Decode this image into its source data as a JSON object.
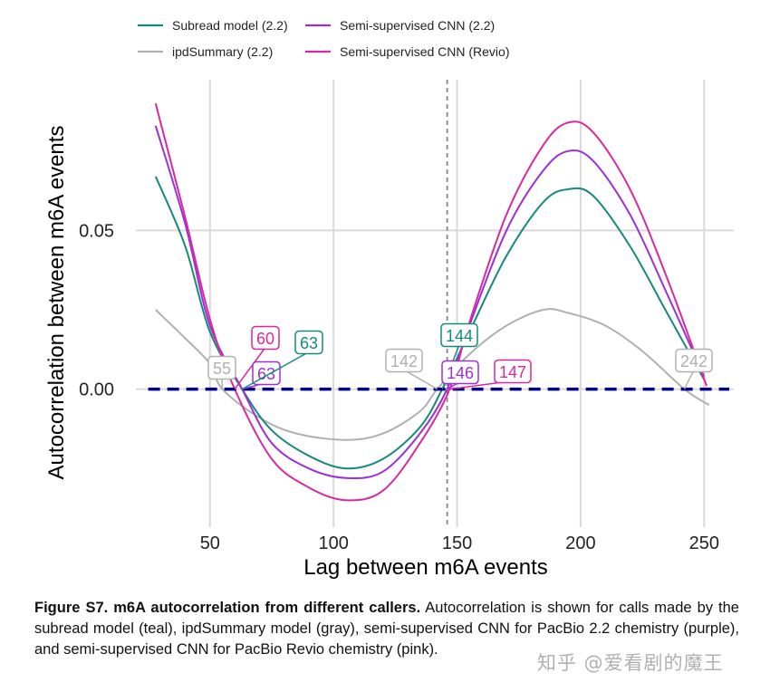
{
  "chart_data": {
    "type": "line",
    "xlabel": "Lag between m6A events",
    "ylabel": "Autocorrelation between m6A events",
    "xlim": [
      20,
      262
    ],
    "ylim": [
      -0.0435,
      0.0975
    ],
    "x_ticks": [
      50,
      100,
      150,
      200,
      250
    ],
    "x_tick_labels": [
      "50",
      "100",
      "150",
      "200",
      "250"
    ],
    "y_ticks": [
      0.0,
      0.05
    ],
    "y_tick_labels": [
      "0.00",
      "0.05"
    ],
    "grid": "major",
    "legend_position": "top",
    "reference_line": {
      "y": 0.0,
      "style": "dashed",
      "color": "#000080"
    },
    "vertical_marker": {
      "x": 146,
      "style": "dashed",
      "color": "#888888"
    },
    "series": [
      {
        "name": "Subread model (2.2)",
        "color": "#16897d",
        "points": [
          [
            28,
            0.067
          ],
          [
            40,
            0.045
          ],
          [
            50,
            0.018
          ],
          [
            63,
            0.0
          ],
          [
            75,
            -0.013
          ],
          [
            90,
            -0.021
          ],
          [
            105,
            -0.025
          ],
          [
            120,
            -0.022
          ],
          [
            135,
            -0.012
          ],
          [
            144,
            0.0
          ],
          [
            155,
            0.018
          ],
          [
            170,
            0.042
          ],
          [
            185,
            0.059
          ],
          [
            195,
            0.063
          ],
          [
            205,
            0.061
          ],
          [
            220,
            0.045
          ],
          [
            235,
            0.024
          ],
          [
            250,
            0.003
          ]
        ]
      },
      {
        "name": "ipdSummary (2.2)",
        "color": "#b0b0b0",
        "points": [
          [
            28,
            0.025
          ],
          [
            40,
            0.016
          ],
          [
            50,
            0.008
          ],
          [
            55,
            0.0
          ],
          [
            70,
            -0.009
          ],
          [
            85,
            -0.014
          ],
          [
            105,
            -0.016
          ],
          [
            120,
            -0.014
          ],
          [
            135,
            -0.007
          ],
          [
            142,
            0.0
          ],
          [
            155,
            0.011
          ],
          [
            170,
            0.02
          ],
          [
            185,
            0.025
          ],
          [
            195,
            0.024
          ],
          [
            210,
            0.02
          ],
          [
            225,
            0.012
          ],
          [
            242,
            0.0
          ],
          [
            252,
            -0.005
          ]
        ]
      },
      {
        "name": "Semi-supervised CNN (2.2)",
        "color": "#9b30d9",
        "points": [
          [
            28,
            0.083
          ],
          [
            40,
            0.052
          ],
          [
            50,
            0.02
          ],
          [
            63,
            0.0
          ],
          [
            75,
            -0.017
          ],
          [
            90,
            -0.025
          ],
          [
            105,
            -0.028
          ],
          [
            120,
            -0.026
          ],
          [
            135,
            -0.014
          ],
          [
            146,
            0.0
          ],
          [
            155,
            0.02
          ],
          [
            170,
            0.05
          ],
          [
            185,
            0.069
          ],
          [
            195,
            0.075
          ],
          [
            205,
            0.072
          ],
          [
            220,
            0.055
          ],
          [
            235,
            0.03
          ],
          [
            250,
            0.004
          ]
        ]
      },
      {
        "name": "Semi-supervised CNN (Revio)",
        "color": "#d9299c",
        "points": [
          [
            28,
            0.09
          ],
          [
            40,
            0.054
          ],
          [
            50,
            0.022
          ],
          [
            60,
            0.0
          ],
          [
            75,
            -0.022
          ],
          [
            90,
            -0.031
          ],
          [
            105,
            -0.035
          ],
          [
            120,
            -0.032
          ],
          [
            135,
            -0.017
          ],
          [
            147,
            0.0
          ],
          [
            155,
            0.021
          ],
          [
            170,
            0.055
          ],
          [
            185,
            0.077
          ],
          [
            195,
            0.084
          ],
          [
            205,
            0.081
          ],
          [
            220,
            0.063
          ],
          [
            235,
            0.035
          ],
          [
            251,
            0.001
          ]
        ]
      }
    ],
    "annotations": [
      {
        "text": "55",
        "color": "#b0b0b0",
        "x": 55
      },
      {
        "text": "60",
        "color": "#d9299c",
        "x": 60
      },
      {
        "text": "63",
        "color": "#9b30d9",
        "x": 63
      },
      {
        "text": "63",
        "color": "#16897d",
        "x": 63
      },
      {
        "text": "142",
        "color": "#b0b0b0",
        "x": 142
      },
      {
        "text": "144",
        "color": "#16897d",
        "x": 144
      },
      {
        "text": "146",
        "color": "#9b30d9",
        "x": 146
      },
      {
        "text": "147",
        "color": "#d9299c",
        "x": 147
      },
      {
        "text": "242",
        "color": "#b0b0b0",
        "x": 242
      }
    ]
  },
  "caption": {
    "label": "Figure S7. m6A autocorrelation from different callers.",
    "text": "Autocorrelation is shown for calls made by the subread model (teal), ipdSummary model (gray), semi-supervised CNN for PacBio 2.2 chemistry (purple), and semi-supervised CNN for PacBio Revio chemistry (pink)."
  },
  "watermark": "知乎 @爱看剧的魔王"
}
